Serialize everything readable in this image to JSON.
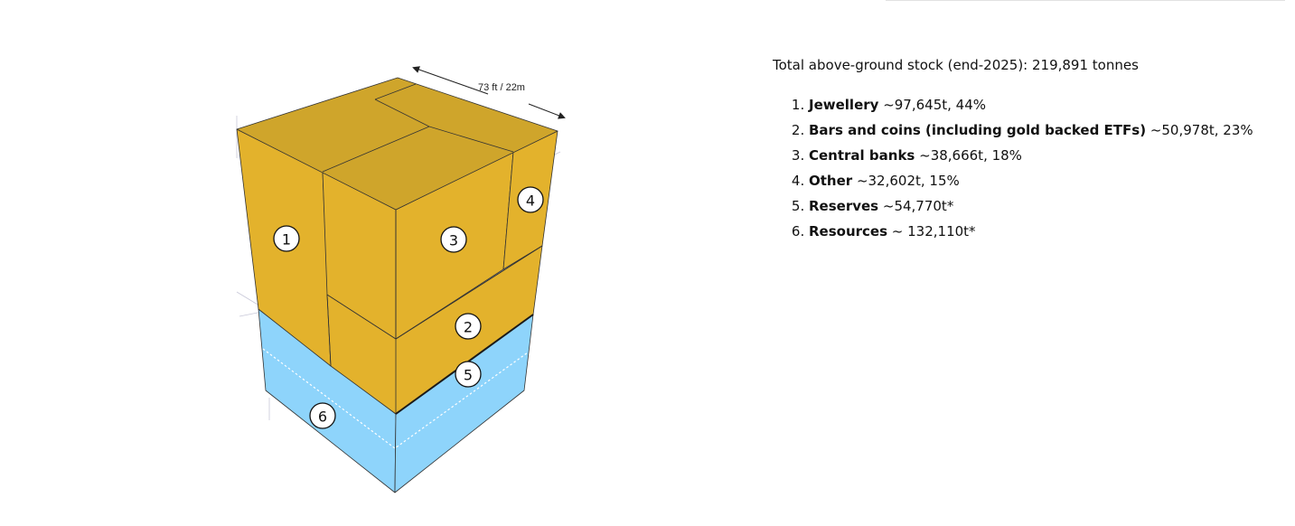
{
  "header": {
    "total_text": "Total above-ground stock (end-2025): 219,891 tonnes"
  },
  "items": [
    {
      "number": "1",
      "label": "Jewellery",
      "value": " ~97,645t, 44%"
    },
    {
      "number": "2",
      "label": "Bars and coins (including gold backed ETFs)",
      "value": " ~50,978t, 23%"
    },
    {
      "number": "3",
      "label": "Central banks",
      "value": " ~38,666t, 18%"
    },
    {
      "number": "4",
      "label": "Other",
      "value": " ~32,602t, 15%"
    },
    {
      "number": "5",
      "label": "Reserves",
      "value": " ~54,770t*"
    },
    {
      "number": "6",
      "label": "Resources",
      "value": " ~ 132,110t*"
    }
  ],
  "diagram": {
    "dimension_label": "73 ft / 22m",
    "colors": {
      "gold_top": "#cfa52b",
      "gold_side": "#e3b22c",
      "blue_side": "#8ed4fb"
    }
  }
}
